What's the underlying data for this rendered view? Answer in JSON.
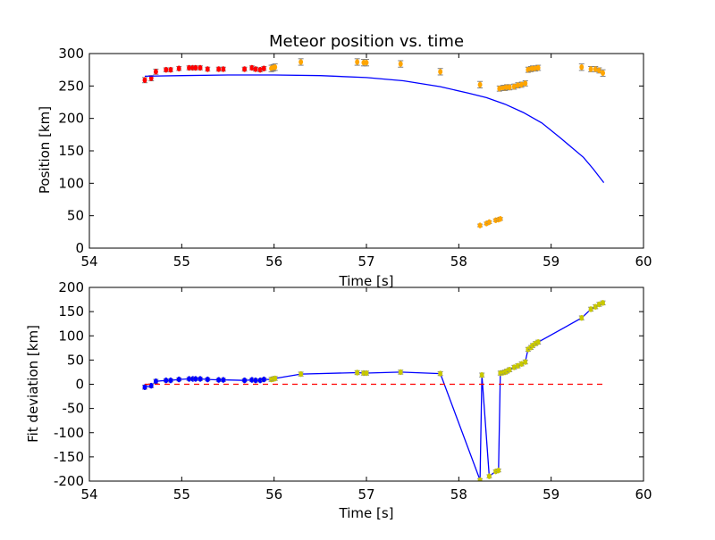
{
  "colors": {
    "background": "#ffffff",
    "fit_line": "#0000ff",
    "early_points": "#ff0000",
    "late_points": "#ffa500",
    "reference_line": "#ff0000",
    "errorbar": "#808080"
  },
  "chart_data": [
    {
      "type": "scatter",
      "title": "Meteor position vs. time",
      "xlabel": "Time [s]",
      "ylabel": "Position [km]",
      "xlim": [
        54,
        60
      ],
      "ylim": [
        0,
        300
      ],
      "xticks": [
        54,
        55,
        56,
        57,
        58,
        59,
        60
      ],
      "yticks": [
        0,
        50,
        100,
        150,
        200,
        250,
        300
      ],
      "grid": false,
      "series": [
        {
          "kind": "errorbar-points",
          "color": "#ff0000",
          "x": [
            54.6,
            54.67,
            54.72,
            54.83,
            54.88,
            54.97,
            55.08,
            55.12,
            55.15,
            55.2,
            55.28,
            55.4,
            55.45,
            55.68,
            55.76,
            55.8,
            55.85,
            55.89
          ],
          "y": [
            259,
            262,
            272,
            275,
            275,
            277,
            278,
            278,
            278,
            278,
            276,
            276,
            276,
            276,
            278,
            276,
            275,
            277
          ],
          "err": [
            4,
            4,
            4,
            3,
            3,
            3,
            3,
            3,
            3,
            3,
            3,
            3,
            3,
            3,
            3,
            3,
            3,
            3
          ]
        },
        {
          "kind": "errorbar-points",
          "color": "#ffa500",
          "x": [
            55.97,
            55.99,
            56.01,
            56.29,
            56.9,
            56.97,
            57.0,
            57.37,
            57.8,
            58.23,
            58.44,
            58.48,
            58.5,
            58.52,
            58.55,
            58.6,
            58.64,
            58.68,
            58.72,
            58.75,
            58.78,
            58.8,
            58.83,
            58.86,
            59.33,
            59.43,
            59.48,
            59.52,
            59.56,
            58.23,
            58.3,
            58.33,
            58.4,
            58.43,
            58.45
          ],
          "y": [
            277,
            278,
            279,
            287,
            287,
            286,
            286,
            284,
            272,
            252,
            246,
            247,
            247,
            248,
            248,
            249,
            251,
            252,
            254,
            275,
            276,
            277,
            277,
            278,
            279,
            276,
            276,
            274,
            270,
            35,
            38,
            40,
            43,
            44,
            45
          ],
          "err": [
            5,
            5,
            5,
            5,
            5,
            5,
            5,
            5,
            5,
            5,
            4,
            4,
            4,
            4,
            4,
            4,
            4,
            4,
            4,
            4,
            4,
            4,
            4,
            4,
            5,
            4,
            4,
            4,
            5,
            2,
            2,
            2,
            2,
            2,
            2
          ]
        },
        {
          "kind": "line",
          "color": "#0000ff",
          "x": [
            54.6,
            55.0,
            55.5,
            56.0,
            56.5,
            57.0,
            57.4,
            57.8,
            58.1,
            58.3,
            58.5,
            58.7,
            58.9,
            59.1,
            59.35,
            59.45,
            59.57
          ],
          "y": [
            265,
            266,
            267,
            267,
            266,
            263,
            258,
            249,
            239,
            232,
            222,
            209,
            193,
            170,
            140,
            123,
            101
          ]
        }
      ]
    },
    {
      "type": "line",
      "title": "",
      "xlabel": "Time [s]",
      "ylabel": "Fit deviation [km]",
      "xlim": [
        54,
        60
      ],
      "ylim": [
        -200,
        200
      ],
      "xticks": [
        54,
        55,
        56,
        57,
        58,
        59,
        60
      ],
      "yticks": [
        -200,
        -150,
        -100,
        -50,
        0,
        50,
        100,
        150,
        200
      ],
      "grid": false,
      "series": [
        {
          "kind": "line",
          "color": "#0000ff",
          "x": [
            54.6,
            54.67,
            54.72,
            54.83,
            54.88,
            54.97,
            55.08,
            55.12,
            55.15,
            55.2,
            55.28,
            55.4,
            55.45,
            55.68,
            55.76,
            55.8,
            55.85,
            55.89,
            55.97,
            55.99,
            56.01,
            56.29,
            56.9,
            56.97,
            57.0,
            57.37,
            57.8,
            58.23,
            58.25,
            58.33,
            58.4,
            58.43,
            58.45,
            58.48,
            58.5,
            58.52,
            58.55,
            58.6,
            58.64,
            58.68,
            58.72,
            58.75,
            58.78,
            58.8,
            58.83,
            58.86,
            59.33,
            59.43,
            59.48,
            59.52,
            59.56
          ],
          "y": [
            -6,
            -3,
            6,
            8,
            8,
            10,
            11,
            11,
            11,
            11,
            10,
            9,
            9,
            8,
            9,
            8,
            8,
            10,
            10,
            11,
            12,
            21,
            24,
            23,
            23,
            25,
            22,
            -198,
            19,
            -190,
            -180,
            -178,
            23,
            24,
            25,
            27,
            30,
            35,
            38,
            42,
            46,
            72,
            76,
            80,
            84,
            87,
            137,
            155,
            160,
            165,
            168
          ],
          "err": [
            4,
            4,
            4,
            3,
            3,
            3,
            3,
            3,
            3,
            3,
            3,
            3,
            3,
            3,
            3,
            3,
            3,
            3,
            4,
            4,
            4,
            4,
            4,
            4,
            4,
            4,
            4,
            3,
            4,
            3,
            3,
            3,
            4,
            4,
            4,
            4,
            4,
            4,
            4,
            4,
            4,
            4,
            4,
            4,
            4,
            4,
            4,
            4,
            4,
            4,
            4
          ]
        },
        {
          "kind": "dashed-line",
          "color": "#ff0000",
          "x": [
            54.6,
            59.56
          ],
          "y": [
            0,
            0
          ]
        }
      ]
    }
  ]
}
